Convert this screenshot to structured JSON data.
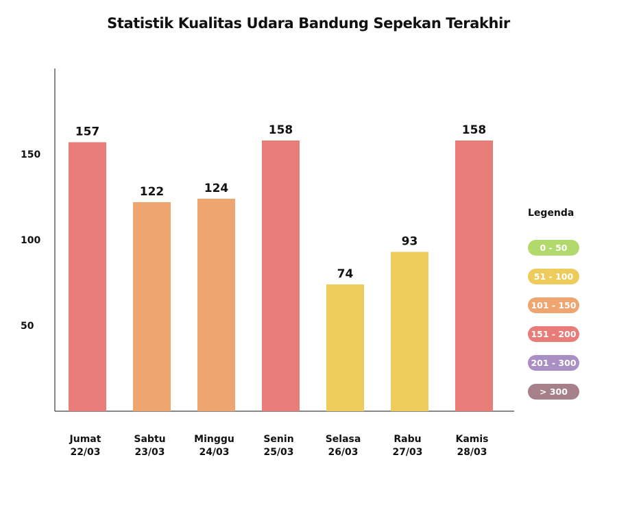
{
  "chart_data": {
    "type": "bar",
    "title": "Statistik Kualitas Udara Bandung Sepekan Terakhir",
    "categories": [
      {
        "day": "Jumat",
        "date": "22/03"
      },
      {
        "day": "Sabtu",
        "date": "23/03"
      },
      {
        "day": "Minggu",
        "date": "24/03"
      },
      {
        "day": "Senin",
        "date": "25/03"
      },
      {
        "day": "Selasa",
        "date": "26/03"
      },
      {
        "day": "Rabu",
        "date": "27/03"
      },
      {
        "day": "Kamis",
        "date": "28/03"
      }
    ],
    "values": [
      157,
      122,
      124,
      158,
      74,
      93,
      158
    ],
    "yticks": [
      50,
      100,
      150
    ],
    "ylim": [
      0,
      200
    ],
    "xlabel": "",
    "ylabel": "",
    "legend": {
      "title": "Legenda",
      "placement": "right",
      "items": [
        {
          "label": "0 - 50",
          "color": "#b2d96b",
          "min": 0,
          "max": 50
        },
        {
          "label": "51 - 100",
          "color": "#edcc5c",
          "min": 51,
          "max": 100
        },
        {
          "label": "101 - 150",
          "color": "#eea570",
          "min": 101,
          "max": 150
        },
        {
          "label": "151 - 200",
          "color": "#e87c78",
          "min": 151,
          "max": 200
        },
        {
          "label": "201 - 300",
          "color": "#aa8fc4",
          "min": 201,
          "max": 300
        },
        {
          "label": "> 300",
          "color": "#a6808a",
          "min": 301,
          "max": null
        }
      ]
    }
  }
}
